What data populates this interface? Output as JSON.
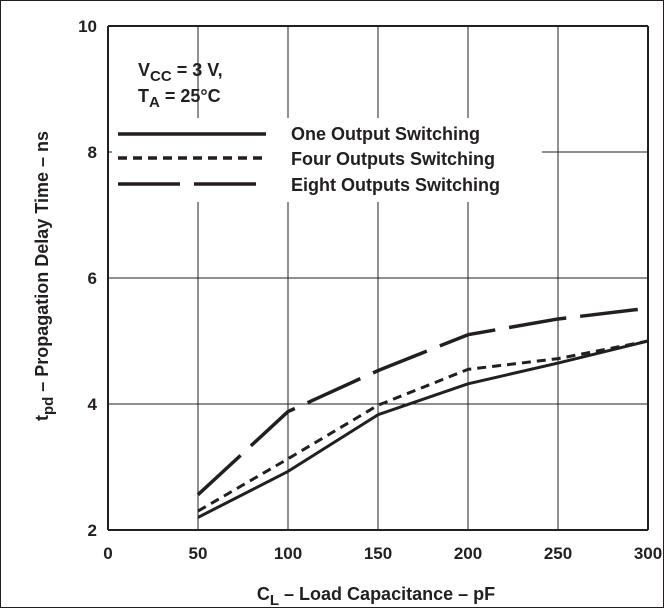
{
  "chart_data": {
    "type": "line",
    "title": "",
    "conditions": {
      "vcc_symbol": "V",
      "vcc_sub": "CC",
      "vcc_text": " = 3 V,",
      "ta_symbol": "T",
      "ta_sub": "A",
      "ta_text": " = 25°C"
    },
    "xlabel": {
      "symbol": "C",
      "sub": "L",
      "text": " – Load Capacitance – pF"
    },
    "ylabel": {
      "symbol": "t",
      "sub": "pd",
      "text": " – Propagation Delay Time – ns"
    },
    "xlim": [
      0,
      300
    ],
    "ylim": [
      2,
      10
    ],
    "xticks": [
      0,
      50,
      100,
      150,
      200,
      250,
      300
    ],
    "yticks": [
      2,
      4,
      6,
      8,
      10
    ],
    "xtick_labels": [
      "0",
      "50",
      "100",
      "150",
      "200",
      "250",
      "300"
    ],
    "ytick_labels": [
      "2",
      "4",
      "6",
      "8",
      "10"
    ],
    "grid": true,
    "legend_position": "top-left",
    "series": [
      {
        "name": "One Output Switching",
        "style": "solid",
        "x": [
          50,
          100,
          150,
          200,
          250,
          300
        ],
        "values": [
          2.2,
          2.93,
          3.83,
          4.32,
          4.65,
          5.0
        ]
      },
      {
        "name": "Four Outputs Switching",
        "style": "dashed",
        "x": [
          50,
          100,
          150,
          200,
          250,
          300
        ],
        "values": [
          2.3,
          3.13,
          3.98,
          4.55,
          4.72,
          5.0
        ]
      },
      {
        "name": "Eight Outputs Switching",
        "style": "long-dashed",
        "x": [
          50,
          100,
          150,
          200,
          250,
          300
        ],
        "values": [
          2.56,
          3.88,
          4.53,
          5.1,
          5.35,
          5.52
        ]
      }
    ],
    "line_color": "#231f20",
    "grid_color": "#231f20"
  }
}
